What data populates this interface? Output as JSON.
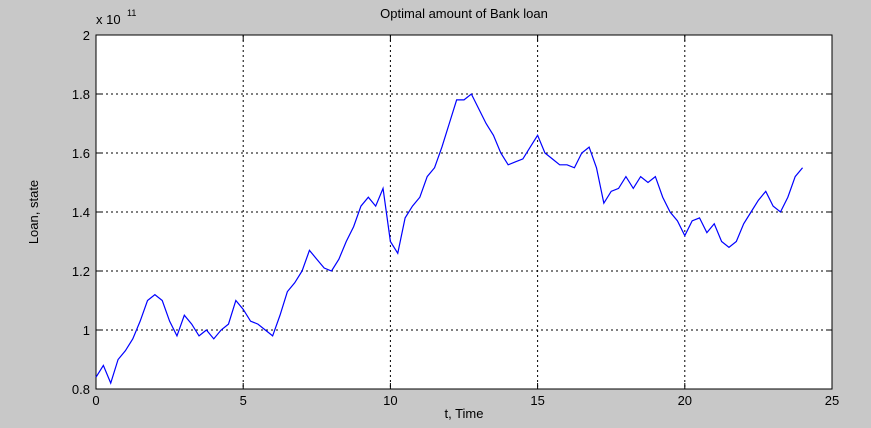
{
  "chart_data": {
    "type": "line",
    "title": "Optimal amount of Bank loan",
    "x_label": "t, Time",
    "y_label": "Loan, state",
    "y_multiplier": {
      "base": "x 10",
      "exponent": "11"
    },
    "xlim": [
      0,
      25
    ],
    "xticks": [
      0,
      5,
      10,
      15,
      20,
      25
    ],
    "ylim": [
      0.8,
      2
    ],
    "yticks": [
      0.8,
      1,
      1.2,
      1.4,
      1.6,
      1.8,
      2
    ],
    "grid": true,
    "x": [
      0,
      0.25,
      0.5,
      0.75,
      1,
      1.25,
      1.5,
      1.75,
      2,
      2.25,
      2.5,
      2.75,
      3,
      3.25,
      3.5,
      3.75,
      4,
      4.25,
      4.5,
      4.75,
      5,
      5.25,
      5.5,
      5.75,
      6,
      6.25,
      6.5,
      6.75,
      7,
      7.25,
      7.5,
      7.75,
      8,
      8.25,
      8.5,
      8.75,
      9,
      9.25,
      9.5,
      9.75,
      10,
      10.25,
      10.5,
      10.75,
      11,
      11.25,
      11.5,
      11.75,
      12,
      12.25,
      12.5,
      12.75,
      13,
      13.25,
      13.5,
      13.75,
      14,
      14.25,
      14.5,
      14.75,
      15,
      15.25,
      15.5,
      15.75,
      16,
      16.25,
      16.5,
      16.75,
      17,
      17.25,
      17.5,
      17.75,
      18,
      18.25,
      18.5,
      18.75,
      19,
      19.25,
      19.5,
      19.75,
      20,
      20.25,
      20.5,
      20.75,
      21,
      21.25,
      21.5,
      21.75,
      22,
      22.25,
      22.5,
      22.75,
      23,
      23.25,
      23.5,
      23.75,
      24
    ],
    "series": [
      {
        "color": "#0000ff",
        "values": [
          0.84,
          0.88,
          0.82,
          0.9,
          0.93,
          0.97,
          1.03,
          1.1,
          1.12,
          1.1,
          1.03,
          0.98,
          1.05,
          1.02,
          0.98,
          1.0,
          0.97,
          1.0,
          1.02,
          1.1,
          1.07,
          1.03,
          1.02,
          1.0,
          0.98,
          1.05,
          1.13,
          1.16,
          1.2,
          1.27,
          1.24,
          1.21,
          1.2,
          1.24,
          1.3,
          1.35,
          1.42,
          1.45,
          1.42,
          1.48,
          1.3,
          1.26,
          1.38,
          1.42,
          1.45,
          1.52,
          1.55,
          1.62,
          1.7,
          1.78,
          1.78,
          1.8,
          1.75,
          1.7,
          1.66,
          1.6,
          1.56,
          1.57,
          1.58,
          1.62,
          1.66,
          1.6,
          1.58,
          1.56,
          1.56,
          1.55,
          1.6,
          1.62,
          1.55,
          1.43,
          1.47,
          1.48,
          1.52,
          1.48,
          1.52,
          1.5,
          1.52,
          1.45,
          1.4,
          1.37,
          1.32,
          1.37,
          1.38,
          1.33,
          1.36,
          1.3,
          1.28,
          1.3,
          1.36,
          1.4,
          1.44,
          1.47,
          1.42,
          1.4,
          1.45,
          1.52,
          1.55
        ]
      }
    ]
  }
}
